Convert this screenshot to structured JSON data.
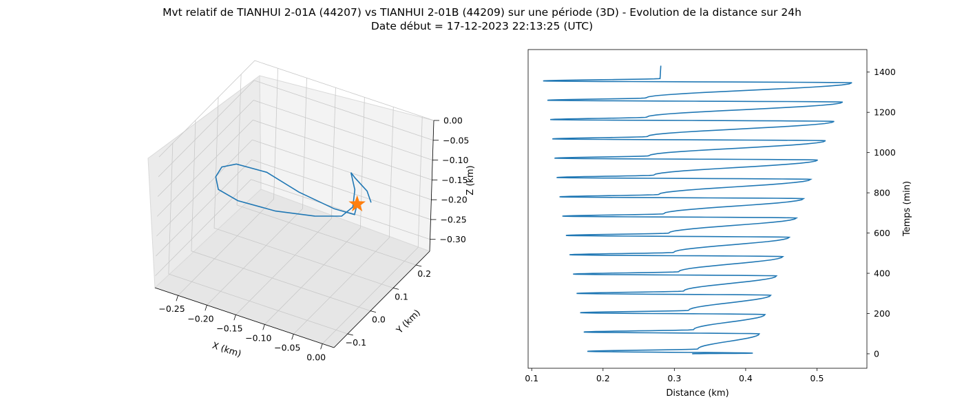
{
  "header": {
    "title_line1": "Mvt relatif de TIANHUI 2-01A (44207) vs TIANHUI 2-01B (44209) sur une période (3D) - Evolution de la distance sur 24h",
    "title_line2": "Date début = 17-12-2023 22:13:25 (UTC)"
  },
  "colors": {
    "series": "#1f77b4",
    "marker": "#ff7f0e",
    "pane": "#f2f2f2",
    "grid": "#c8c8c8"
  },
  "chart_data": [
    {
      "type": "line3d",
      "xlabel": "X (km)",
      "ylabel": "Y (km)",
      "zlabel": "Z (km)",
      "xlim": [
        -0.29,
        0.02
      ],
      "ylim": [
        -0.16,
        0.26
      ],
      "zlim": [
        -0.33,
        0.0
      ],
      "x_ticks": [
        "−0.25",
        "−0.20",
        "−0.15",
        "−0.10",
        "−0.05",
        "0.00"
      ],
      "y_ticks": [
        "−0.1",
        "0.0",
        "0.1",
        "0.2"
      ],
      "z_ticks": [
        "0.00",
        "−0.05",
        "−0.10",
        "−0.15",
        "−0.20",
        "−0.25",
        "−0.30"
      ],
      "trajectory": [
        {
          "x": -0.035,
          "y": 0.07,
          "z": -0.128
        },
        {
          "x": -0.02,
          "y": 0.02,
          "z": -0.118
        },
        {
          "x": -0.04,
          "y": -0.02,
          "z": -0.09
        },
        {
          "x": -0.09,
          "y": -0.05,
          "z": -0.055
        },
        {
          "x": -0.15,
          "y": -0.04,
          "z": -0.04
        },
        {
          "x": -0.21,
          "y": -0.02,
          "z": -0.06
        },
        {
          "x": -0.25,
          "y": 0.02,
          "z": -0.11
        },
        {
          "x": -0.275,
          "y": 0.06,
          "z": -0.17
        },
        {
          "x": -0.285,
          "y": 0.1,
          "z": -0.23
        },
        {
          "x": -0.27,
          "y": 0.15,
          "z": -0.28
        },
        {
          "x": -0.22,
          "y": 0.19,
          "z": -0.305
        },
        {
          "x": -0.16,
          "y": 0.21,
          "z": -0.3
        },
        {
          "x": -0.11,
          "y": 0.2,
          "z": -0.27
        },
        {
          "x": -0.08,
          "y": 0.17,
          "z": -0.215
        },
        {
          "x": -0.07,
          "y": 0.15,
          "z": -0.155
        },
        {
          "x": -0.07,
          "y": 0.13,
          "z": -0.1
        },
        {
          "x": -0.055,
          "y": 0.11,
          "z": -0.095
        },
        {
          "x": -0.03,
          "y": 0.1,
          "z": -0.11
        },
        {
          "x": -0.015,
          "y": 0.08,
          "z": -0.12
        }
      ],
      "start_marker": {
        "x": -0.035,
        "y": 0.07,
        "z": -0.128
      }
    },
    {
      "type": "line",
      "xlabel": "Distance (km)",
      "ylabel": "Temps (min)",
      "xlim": [
        0.095,
        0.57
      ],
      "ylim": [
        -72,
        1512
      ],
      "x_ticks": [
        0.1,
        0.2,
        0.3,
        0.4,
        0.5
      ],
      "y_ticks": [
        0,
        200,
        400,
        600,
        800,
        1000,
        1200,
        1400
      ],
      "cycles": [
        {
          "start_t": 0,
          "max": 0.41,
          "min": 0.178,
          "mid": 0.333
        },
        {
          "start_t": 96,
          "max": 0.419,
          "min": 0.173,
          "mid": 0.327
        },
        {
          "start_t": 192,
          "max": 0.427,
          "min": 0.168,
          "mid": 0.32
        },
        {
          "start_t": 288,
          "max": 0.435,
          "min": 0.163,
          "mid": 0.313
        },
        {
          "start_t": 384,
          "max": 0.443,
          "min": 0.158,
          "mid": 0.306
        },
        {
          "start_t": 480,
          "max": 0.452,
          "min": 0.153,
          "mid": 0.299
        },
        {
          "start_t": 576,
          "max": 0.461,
          "min": 0.148,
          "mid": 0.292
        },
        {
          "start_t": 672,
          "max": 0.471,
          "min": 0.143,
          "mid": 0.285
        },
        {
          "start_t": 768,
          "max": 0.481,
          "min": 0.139,
          "mid": 0.278
        },
        {
          "start_t": 864,
          "max": 0.491,
          "min": 0.135,
          "mid": 0.271
        },
        {
          "start_t": 960,
          "max": 0.501,
          "min": 0.132,
          "mid": 0.264
        },
        {
          "start_t": 1056,
          "max": 0.512,
          "min": 0.129,
          "mid": 0.262
        },
        {
          "start_t": 1152,
          "max": 0.524,
          "min": 0.126,
          "mid": 0.261
        },
        {
          "start_t": 1248,
          "max": 0.536,
          "min": 0.122,
          "mid": 0.26
        },
        {
          "start_t": 1344,
          "max": 0.549,
          "min": 0.116,
          "mid": 0.28
        }
      ],
      "start": {
        "t": 0,
        "d": 0.325
      },
      "end": {
        "t": 1432,
        "d": 0.281
      }
    }
  ]
}
